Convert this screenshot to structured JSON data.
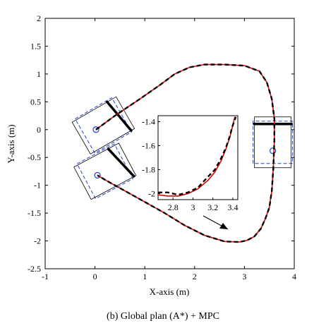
{
  "caption": "(b) Global plan (A*) + MPC",
  "chart_data": {
    "type": "line",
    "title": "",
    "xlabel": "X-axis (m)",
    "ylabel": "Y-axis (m)",
    "xlim": [
      -1,
      4
    ],
    "ylim": [
      -2.5,
      2
    ],
    "xticks": [
      -1,
      0,
      1,
      2,
      3,
      4
    ],
    "yticks": [
      -2.5,
      -2,
      -1.5,
      -1,
      -0.5,
      0,
      0.5,
      1,
      1.5,
      2
    ],
    "grid": false,
    "colors": {
      "mpc": "#e00000",
      "plan": "#000000",
      "footprint": "#1f3fd0",
      "marker": "#1f3fd0"
    },
    "series": [
      {
        "style": "solid",
        "x": [
          0.02,
          0.4,
          0.9,
          1.3,
          1.6,
          1.9,
          2.2,
          2.6,
          3.0,
          3.3,
          3.45,
          3.55,
          3.6,
          3.6,
          3.58,
          3.55,
          3.5,
          3.42,
          3.33,
          3.2,
          3.05,
          2.9,
          2.6,
          2.2,
          1.8,
          1.4,
          1.0,
          0.7,
          0.4,
          0.2,
          0.05
        ],
        "y": [
          0.0,
          0.25,
          0.55,
          0.8,
          1.0,
          1.12,
          1.17,
          1.17,
          1.15,
          1.05,
          0.85,
          0.55,
          0.2,
          -0.2,
          -0.7,
          -1.1,
          -1.4,
          -1.6,
          -1.78,
          -1.92,
          -1.99,
          -2.02,
          -2.01,
          -1.9,
          -1.72,
          -1.5,
          -1.3,
          -1.15,
          -1.0,
          -0.9,
          -0.82
        ]
      },
      {
        "style": "dashed",
        "x": [
          0.02,
          0.4,
          0.9,
          1.3,
          1.6,
          1.9,
          2.2,
          2.6,
          3.0,
          3.3,
          3.45,
          3.55,
          3.6,
          3.6,
          3.58,
          3.55,
          3.5,
          3.42,
          3.33,
          3.2,
          3.05,
          2.9,
          2.6,
          2.2,
          1.8,
          1.4,
          1.0,
          0.7,
          0.4,
          0.2,
          0.05
        ],
        "y": [
          0.0,
          0.25,
          0.55,
          0.8,
          1.0,
          1.12,
          1.17,
          1.17,
          1.15,
          1.05,
          0.85,
          0.55,
          0.2,
          -0.2,
          -0.7,
          -1.1,
          -1.4,
          -1.6,
          -1.78,
          -1.92,
          -1.99,
          -2.02,
          -2.01,
          -1.9,
          -1.72,
          -1.5,
          -1.3,
          -1.15,
          -1.0,
          -0.9,
          -0.82
        ]
      }
    ],
    "vehicles": [
      {
        "x": 0.02,
        "y": 0.0,
        "heading_deg": 30,
        "steer_deg": 10
      },
      {
        "x": 0.05,
        "y": -0.82,
        "heading_deg": 28,
        "steer_deg": 15
      },
      {
        "x": 3.57,
        "y": -0.38,
        "heading_deg": 90,
        "steer_deg": 0
      }
    ],
    "inset": {
      "xlim": [
        2.65,
        3.45
      ],
      "ylim": [
        -2.05,
        -1.35
      ],
      "xticks": [
        2.8,
        3,
        3.2,
        3.4
      ],
      "xtick_labels": [
        "2.8",
        "3",
        "3.2",
        "3.4"
      ],
      "yticks": [
        -2,
        -1.8,
        -1.6,
        -1.4
      ],
      "ytick_labels": [
        "-2",
        "-1.8",
        "-1.6",
        "-1.4"
      ],
      "mpc": {
        "x": [
          2.65,
          2.75,
          2.85,
          2.95,
          3.05,
          3.15,
          3.22,
          3.28,
          3.33,
          3.37,
          3.4,
          3.42
        ],
        "y": [
          -2.01,
          -2.02,
          -2.02,
          -2.0,
          -1.96,
          -1.89,
          -1.82,
          -1.73,
          -1.63,
          -1.53,
          -1.43,
          -1.36
        ]
      },
      "plan": {
        "x": [
          2.65,
          2.75,
          2.85,
          2.95,
          3.05,
          3.15,
          3.22,
          3.28,
          3.33,
          3.37,
          3.4,
          3.43
        ],
        "y": [
          -1.99,
          -1.99,
          -2.01,
          -1.99,
          -1.95,
          -1.86,
          -1.8,
          -1.71,
          -1.62,
          -1.52,
          -1.43,
          -1.36
        ]
      }
    }
  }
}
